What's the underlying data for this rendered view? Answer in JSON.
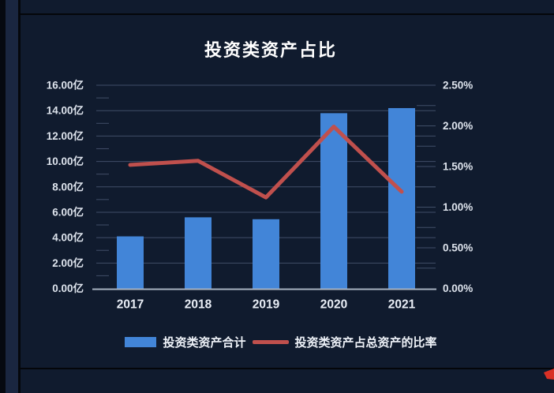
{
  "window": {
    "background_color": "#101b2e",
    "frame_color": "#04060a",
    "row_strip_color": "#1a2640",
    "corner_marker_color": "#d93025"
  },
  "chart_data": {
    "type": "bar",
    "combo": "bar+line",
    "title": "投资类资产占比",
    "categories": [
      "2017",
      "2018",
      "2019",
      "2020",
      "2021"
    ],
    "series": [
      {
        "name": "投资类资产合计",
        "type": "bar",
        "axis": "left",
        "unit": "亿",
        "values": [
          4.1,
          5.6,
          5.45,
          13.8,
          14.2
        ],
        "color": "#4285d8"
      },
      {
        "name": "投资类资产占总资产的比率",
        "type": "line",
        "axis": "right",
        "unit": "%",
        "values": [
          1.52,
          1.57,
          1.12,
          1.99,
          1.19
        ],
        "color": "#c0504d"
      }
    ],
    "left_axis": {
      "min": 0,
      "max": 16,
      "step": 2,
      "tick_labels": [
        "0.00亿",
        "2.00亿",
        "4.00亿",
        "6.00亿",
        "8.00亿",
        "10.00亿",
        "12.00亿",
        "14.00亿",
        "16.00亿"
      ]
    },
    "right_axis": {
      "min": 0,
      "max": 2.5,
      "step": 0.5,
      "tick_labels": [
        "0.00%",
        "0.50%",
        "1.00%",
        "1.50%",
        "2.00%",
        "2.50%"
      ]
    },
    "grid": true,
    "legend_position": "bottom",
    "style": {
      "grid_color": "#414e68",
      "axis_line_color": "#a9b3c1",
      "tick_label_color": "#dde3ec",
      "category_label_color": "#e9eef6",
      "title_color": "#ffffff"
    }
  }
}
